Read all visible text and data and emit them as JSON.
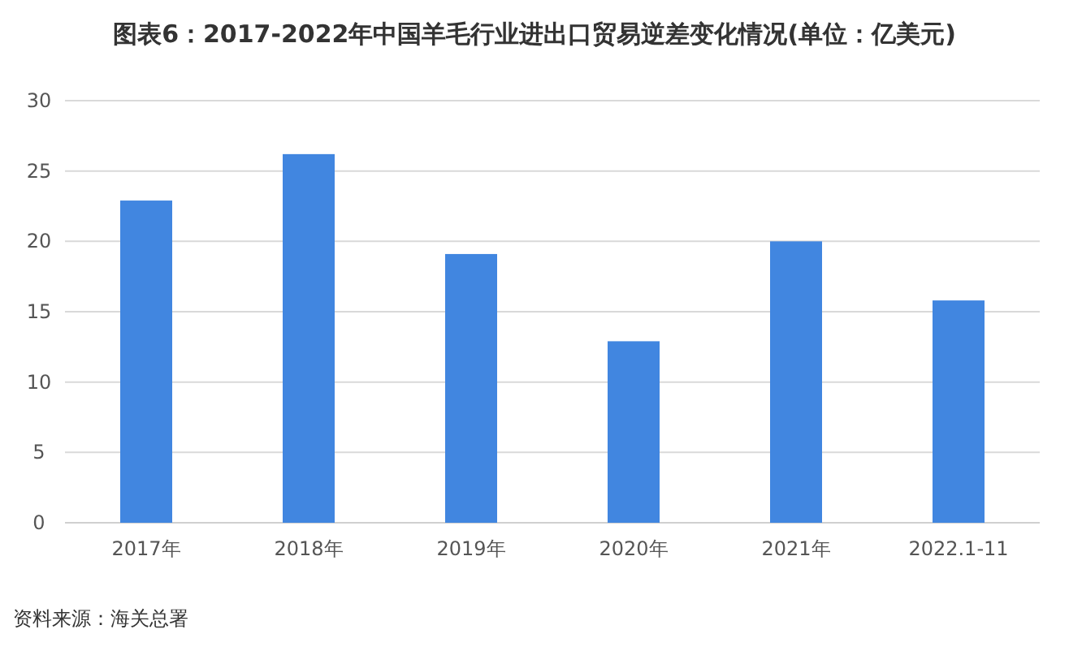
{
  "chart_data": {
    "type": "bar",
    "title": "图表6：2017-2022年中国羊毛行业进出口贸易逆差变化情况(单位：亿美元)",
    "categories": [
      "2017年",
      "2018年",
      "2019年",
      "2020年",
      "2021年",
      "2022.1-11"
    ],
    "values": [
      22.9,
      26.2,
      19.1,
      12.9,
      20.0,
      15.8
    ],
    "color": "#4186e0",
    "ylim": [
      0,
      30
    ],
    "yticks": [
      0,
      5,
      10,
      15,
      20,
      25,
      30
    ],
    "grid": "y",
    "annotations": [
      "资料来源：海关总署"
    ]
  }
}
